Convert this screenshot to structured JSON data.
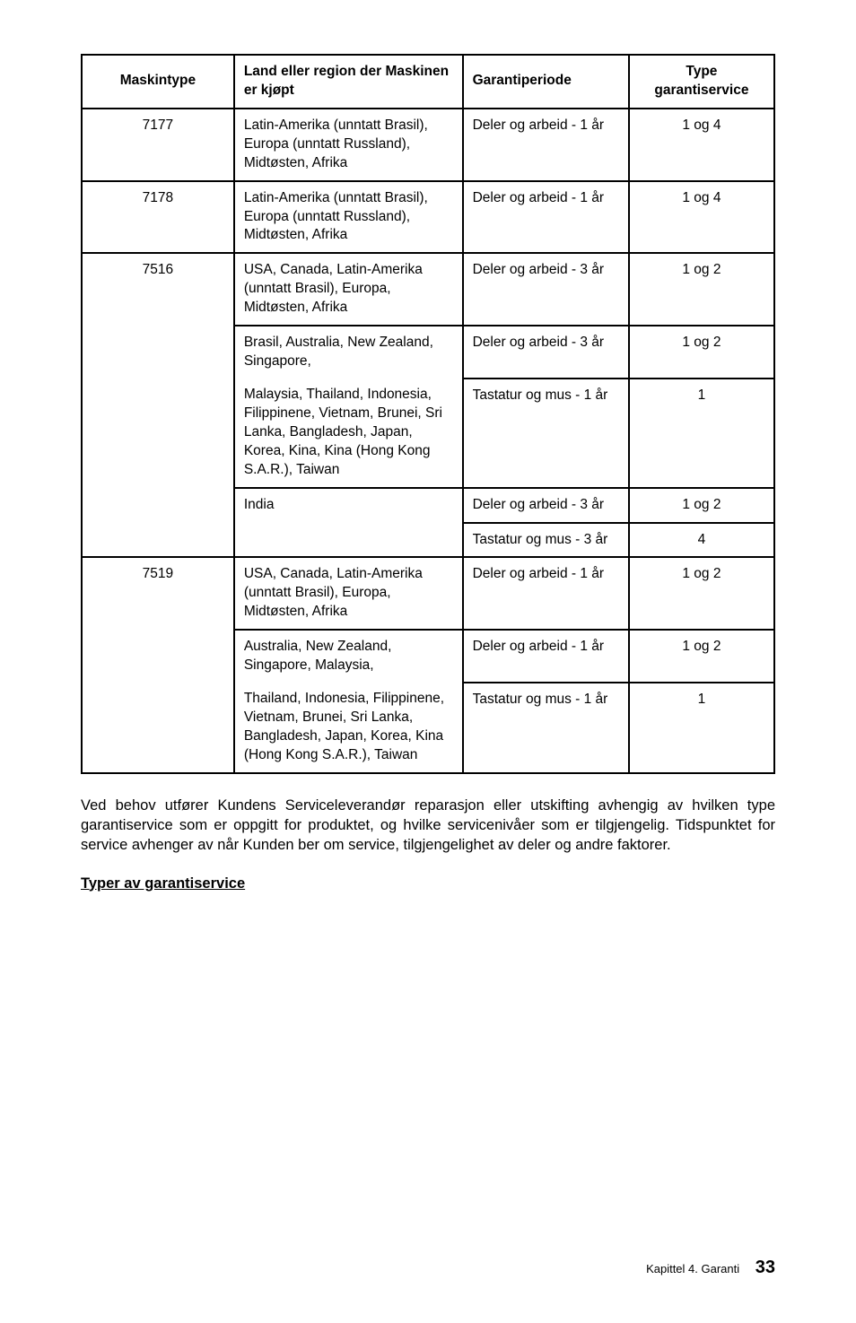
{
  "table": {
    "headers": {
      "c1": "Maskintype",
      "c2": "Land eller region der Maskinen er kjøpt",
      "c3": "Garantiperiode",
      "c4": "Type garantiservice"
    },
    "r1": {
      "c1": "7177",
      "c2": "Latin-Amerika (unntatt Brasil), Europa (unntatt Russland), Midtøsten, Afrika",
      "c3": "Deler og arbeid - 1 år",
      "c4": "1 og 4"
    },
    "r2": {
      "c1": "7178",
      "c2": "Latin-Amerika (unntatt Brasil), Europa (unntatt Russland), Midtøsten, Afrika",
      "c3": "Deler og arbeid - 1 år",
      "c4": "1 og 4"
    },
    "r3a": {
      "c1": "7516",
      "c2": "USA, Canada, Latin-Amerika (unntatt Brasil), Europa, Midtøsten, Afrika",
      "c3": "Deler og arbeid - 3 år",
      "c4": "1 og 2"
    },
    "r3b_top": {
      "c2": "Brasil, Australia, New Zealand, Singapore,",
      "c3": "Deler og arbeid - 3 år",
      "c4": "1 og 2"
    },
    "r3b_bot": {
      "c2": "Malaysia, Thailand, Indonesia, Filippinene, Vietnam, Brunei, Sri Lanka, Bangladesh, Japan, Korea, Kina, Kina (Hong Kong S.A.R.), Taiwan",
      "c3": "Tastatur og mus - 1 år",
      "c4": "1"
    },
    "r3c_top": {
      "c2": "India",
      "c3": "Deler og arbeid - 3 år",
      "c4": "1 og 2"
    },
    "r3c_bot": {
      "c3": "Tastatur og mus - 3 år",
      "c4": "4"
    },
    "r4a": {
      "c1": "7519",
      "c2": "USA, Canada, Latin-Amerika (unntatt Brasil), Europa, Midtøsten, Afrika",
      "c3": "Deler og arbeid - 1 år",
      "c4": "1 og 2"
    },
    "r4b_top": {
      "c2": "Australia, New Zealand, Singapore, Malaysia,",
      "c3": "Deler og arbeid - 1 år",
      "c4": "1 og 2"
    },
    "r4b_bot": {
      "c2": "Thailand, Indonesia, Filippinene, Vietnam, Brunei, Sri Lanka, Bangladesh, Japan, Korea, Kina (Hong Kong S.A.R.), Taiwan",
      "c3": "Tastatur og mus - 1 år",
      "c4": "1"
    }
  },
  "paragraph": "Ved behov utfører Kundens Serviceleverandør reparasjon eller utskifting avhengig av hvilken type garantiservice som er oppgitt for produktet, og hvilke servicenivåer som er tilgjengelig. Tidspunktet for service avhenger av når Kunden ber om service, tilgjengelighet av deler og andre faktorer.",
  "subhead": "Typer av garantiservice",
  "footer": {
    "chapter": "Kapittel 4. Garanti",
    "page": "33"
  },
  "style": {
    "bg": "#ffffff",
    "text": "#000000",
    "border": "#000000",
    "body_fontsize": 15.5,
    "para_fontsize": 16.5
  }
}
